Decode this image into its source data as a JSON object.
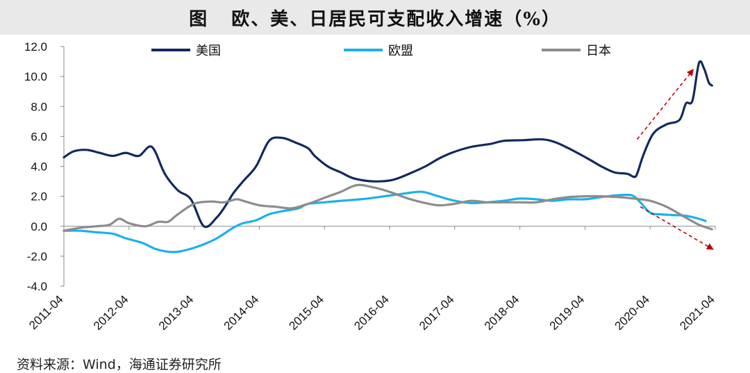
{
  "header": {
    "title": "图   欧、美、日居民可支配收入增速（%）"
  },
  "footer": {
    "source": "资料来源：Wind，海通证券研究所"
  },
  "colors": {
    "us": "#13295f",
    "eu": "#1ab1ec",
    "jp": "#8c8c8c",
    "arrow": "#c00000",
    "title_bg": "#e9e9e9"
  },
  "chart_data": {
    "type": "line",
    "title": "欧、美、日居民可支配收入增速（%）",
    "ylim": [
      -4.0,
      12.0
    ],
    "yticks": [
      "12.0",
      "10.0",
      "8.0",
      "6.0",
      "4.0",
      "2.0",
      "0.0",
      "-2.0",
      "-4.0"
    ],
    "ytick_values": [
      12,
      10,
      8,
      6,
      4,
      2,
      0,
      -2,
      -4
    ],
    "xlim": [
      2011.25,
      2021.25
    ],
    "xticks": [
      "2011-04",
      "2012-04",
      "2013-04",
      "2014-04",
      "2015-04",
      "2016-04",
      "2017-04",
      "2018-04",
      "2019-04",
      "2020-04",
      "2021-04"
    ],
    "legend": "top",
    "grid": false,
    "series": [
      {
        "name": "美国",
        "color": "#13295f",
        "x": [
          2011.25,
          2011.4,
          2011.6,
          2011.8,
          2012.0,
          2012.2,
          2012.4,
          2012.6,
          2012.8,
          2013.0,
          2013.2,
          2013.4,
          2013.6,
          2013.75,
          2013.85,
          2014.0,
          2014.2,
          2014.4,
          2014.6,
          2014.8,
          2015.0,
          2015.1,
          2015.3,
          2015.5,
          2015.7,
          2016.0,
          2016.3,
          2016.6,
          2016.8,
          2017.0,
          2017.2,
          2017.5,
          2017.8,
          2018.0,
          2018.3,
          2018.6,
          2018.8,
          2019.0,
          2019.3,
          2019.5,
          2019.7,
          2019.9,
          2020.0,
          2020.05,
          2020.15,
          2020.3,
          2020.5,
          2020.7,
          2020.8,
          2020.9,
          2021.0,
          2021.08,
          2021.15,
          2021.2
        ],
        "values": [
          4.6,
          5.0,
          5.1,
          4.9,
          4.7,
          4.9,
          4.7,
          5.3,
          3.5,
          2.4,
          1.8,
          0.0,
          0.6,
          1.5,
          2.2,
          3.0,
          4.0,
          5.7,
          5.9,
          5.6,
          5.2,
          4.7,
          4.0,
          3.6,
          3.2,
          3.0,
          3.1,
          3.6,
          4.0,
          4.5,
          4.9,
          5.3,
          5.5,
          5.7,
          5.75,
          5.8,
          5.6,
          5.2,
          4.5,
          4.0,
          3.6,
          3.5,
          3.3,
          3.5,
          4.8,
          6.2,
          6.8,
          7.1,
          8.2,
          8.4,
          10.9,
          10.5,
          9.6,
          9.4
        ]
      },
      {
        "name": "欧盟",
        "color": "#1ab1ec",
        "x": [
          2011.25,
          2011.5,
          2011.75,
          2012.0,
          2012.2,
          2012.45,
          2012.65,
          2012.85,
          2013.0,
          2013.2,
          2013.4,
          2013.6,
          2013.85,
          2014.0,
          2014.2,
          2014.4,
          2014.6,
          2014.85,
          2015.0,
          2015.25,
          2015.5,
          2015.8,
          2016.0,
          2016.25,
          2016.5,
          2016.75,
          2017.0,
          2017.25,
          2017.5,
          2017.75,
          2018.0,
          2018.25,
          2018.5,
          2018.75,
          2019.0,
          2019.25,
          2019.5,
          2019.7,
          2019.9,
          2020.0,
          2020.1,
          2020.25,
          2020.4,
          2020.6,
          2020.8,
          2021.0,
          2021.1
        ],
        "values": [
          -0.3,
          -0.3,
          -0.4,
          -0.5,
          -0.8,
          -1.1,
          -1.5,
          -1.7,
          -1.7,
          -1.5,
          -1.2,
          -0.8,
          -0.1,
          0.2,
          0.4,
          0.8,
          1.0,
          1.2,
          1.5,
          1.6,
          1.7,
          1.8,
          1.9,
          2.05,
          2.2,
          2.3,
          2.0,
          1.7,
          1.55,
          1.6,
          1.7,
          1.85,
          1.8,
          1.7,
          1.8,
          1.8,
          1.95,
          2.05,
          2.1,
          2.0,
          1.6,
          0.9,
          0.8,
          0.75,
          0.7,
          0.5,
          0.35
        ]
      },
      {
        "name": "日本",
        "color": "#8c8c8c",
        "x": [
          2011.25,
          2011.5,
          2011.75,
          2011.95,
          2012.1,
          2012.25,
          2012.5,
          2012.7,
          2012.85,
          2013.0,
          2013.25,
          2013.5,
          2013.7,
          2013.9,
          2014.0,
          2014.25,
          2014.5,
          2014.75,
          2015.0,
          2015.25,
          2015.5,
          2015.75,
          2016.0,
          2016.25,
          2016.5,
          2016.75,
          2017.0,
          2017.25,
          2017.5,
          2017.75,
          2018.0,
          2018.25,
          2018.5,
          2018.75,
          2019.0,
          2019.25,
          2019.5,
          2019.75,
          2020.0,
          2020.25,
          2020.5,
          2020.75,
          2021.0,
          2021.2
        ],
        "values": [
          -0.3,
          -0.1,
          0.0,
          0.1,
          0.5,
          0.2,
          0.0,
          0.3,
          0.3,
          0.8,
          1.5,
          1.65,
          1.6,
          1.8,
          1.7,
          1.4,
          1.3,
          1.2,
          1.5,
          1.9,
          2.3,
          2.75,
          2.6,
          2.3,
          1.9,
          1.6,
          1.4,
          1.5,
          1.7,
          1.6,
          1.6,
          1.6,
          1.6,
          1.8,
          1.95,
          2.0,
          2.0,
          1.95,
          1.85,
          1.7,
          1.3,
          0.7,
          0.1,
          -0.2
        ]
      }
    ],
    "annotations": [
      {
        "type": "arrow",
        "from": [
          2020.05,
          5.8
        ],
        "to": [
          2020.9,
          10.4
        ],
        "color": "#c00000"
      },
      {
        "type": "arrow",
        "from": [
          2020.1,
          1.3
        ],
        "to": [
          2021.2,
          -1.5
        ],
        "color": "#c00000"
      }
    ]
  }
}
